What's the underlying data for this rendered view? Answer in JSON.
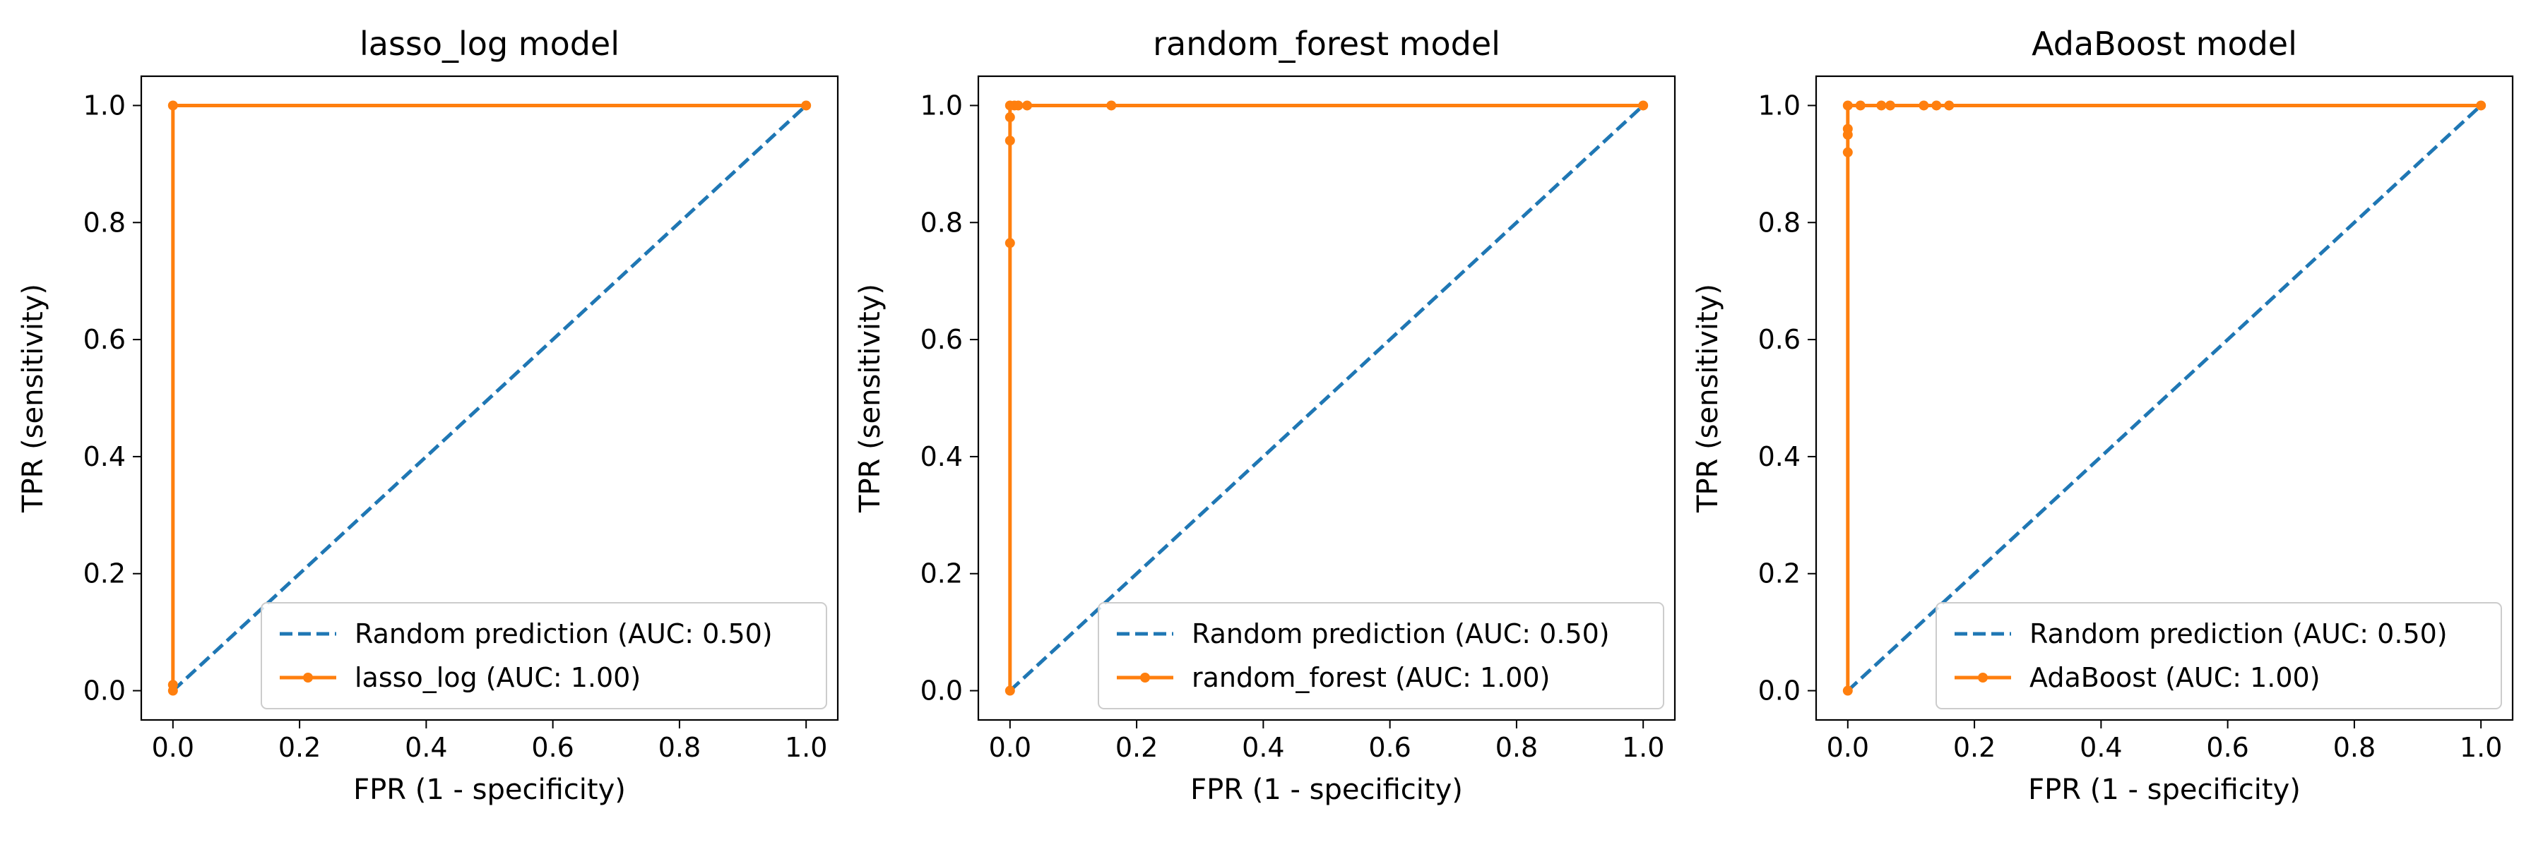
{
  "colors": {
    "random": "#1f77b4",
    "model": "#ff7f0e",
    "axes": "#000000",
    "legend_border": "#cccccc"
  },
  "chart_data": [
    {
      "type": "line",
      "title": "lasso_log model",
      "xlabel": "FPR (1 - specificity)",
      "ylabel": "TPR (sensitivity)",
      "xlim": [
        -0.05,
        1.05
      ],
      "ylim": [
        -0.05,
        1.05
      ],
      "xticks": [
        0.0,
        0.2,
        0.4,
        0.6,
        0.8,
        1.0
      ],
      "yticks": [
        0.0,
        0.2,
        0.4,
        0.6,
        0.8,
        1.0
      ],
      "tick_labels": [
        "0.0",
        "0.2",
        "0.4",
        "0.6",
        "0.8",
        "1.0"
      ],
      "grid": false,
      "legend_position": "lower-right",
      "series": [
        {
          "name": "Random prediction (AUC: 0.50)",
          "style": "dashed",
          "x": [
            0,
            1
          ],
          "y": [
            0,
            1
          ]
        },
        {
          "name": "lasso_log (AUC: 1.00)",
          "style": "solid-markers",
          "x": [
            0,
            0,
            0,
            1
          ],
          "y": [
            0,
            0.01,
            1.0,
            1.0
          ]
        }
      ]
    },
    {
      "type": "line",
      "title": "random_forest model",
      "xlabel": "FPR (1 - specificity)",
      "ylabel": "TPR (sensitivity)",
      "xlim": [
        -0.05,
        1.05
      ],
      "ylim": [
        -0.05,
        1.05
      ],
      "xticks": [
        0.0,
        0.2,
        0.4,
        0.6,
        0.8,
        1.0
      ],
      "yticks": [
        0.0,
        0.2,
        0.4,
        0.6,
        0.8,
        1.0
      ],
      "tick_labels": [
        "0.0",
        "0.2",
        "0.4",
        "0.6",
        "0.8",
        "1.0"
      ],
      "grid": false,
      "legend_position": "lower-right",
      "series": [
        {
          "name": "Random prediction (AUC: 0.50)",
          "style": "dashed",
          "x": [
            0,
            1
          ],
          "y": [
            0,
            1
          ]
        },
        {
          "name": "random_forest (AUC: 1.00)",
          "style": "solid-markers",
          "x": [
            0,
            0,
            0,
            0,
            0,
            0.007,
            0.013,
            0.027,
            0.16,
            1
          ],
          "y": [
            0,
            0.765,
            0.94,
            0.98,
            1.0,
            1.0,
            1.0,
            1.0,
            1.0,
            1.0
          ]
        }
      ]
    },
    {
      "type": "line",
      "title": "AdaBoost model",
      "xlabel": "FPR (1 - specificity)",
      "ylabel": "TPR (sensitivity)",
      "xlim": [
        -0.05,
        1.05
      ],
      "ylim": [
        -0.05,
        1.05
      ],
      "xticks": [
        0.0,
        0.2,
        0.4,
        0.6,
        0.8,
        1.0
      ],
      "yticks": [
        0.0,
        0.2,
        0.4,
        0.6,
        0.8,
        1.0
      ],
      "tick_labels": [
        "0.0",
        "0.2",
        "0.4",
        "0.6",
        "0.8",
        "1.0"
      ],
      "grid": false,
      "legend_position": "lower-right",
      "series": [
        {
          "name": "Random prediction (AUC: 0.50)",
          "style": "dashed",
          "x": [
            0,
            1
          ],
          "y": [
            0,
            1
          ]
        },
        {
          "name": "AdaBoost (AUC: 1.00)",
          "style": "solid-markers",
          "x": [
            0,
            0,
            0,
            0,
            0,
            0.02,
            0.053,
            0.067,
            0.12,
            0.14,
            0.16,
            1
          ],
          "y": [
            0,
            0.92,
            0.95,
            0.96,
            1.0,
            1.0,
            1.0,
            1.0,
            1.0,
            1.0,
            1.0,
            1.0
          ]
        }
      ]
    }
  ]
}
